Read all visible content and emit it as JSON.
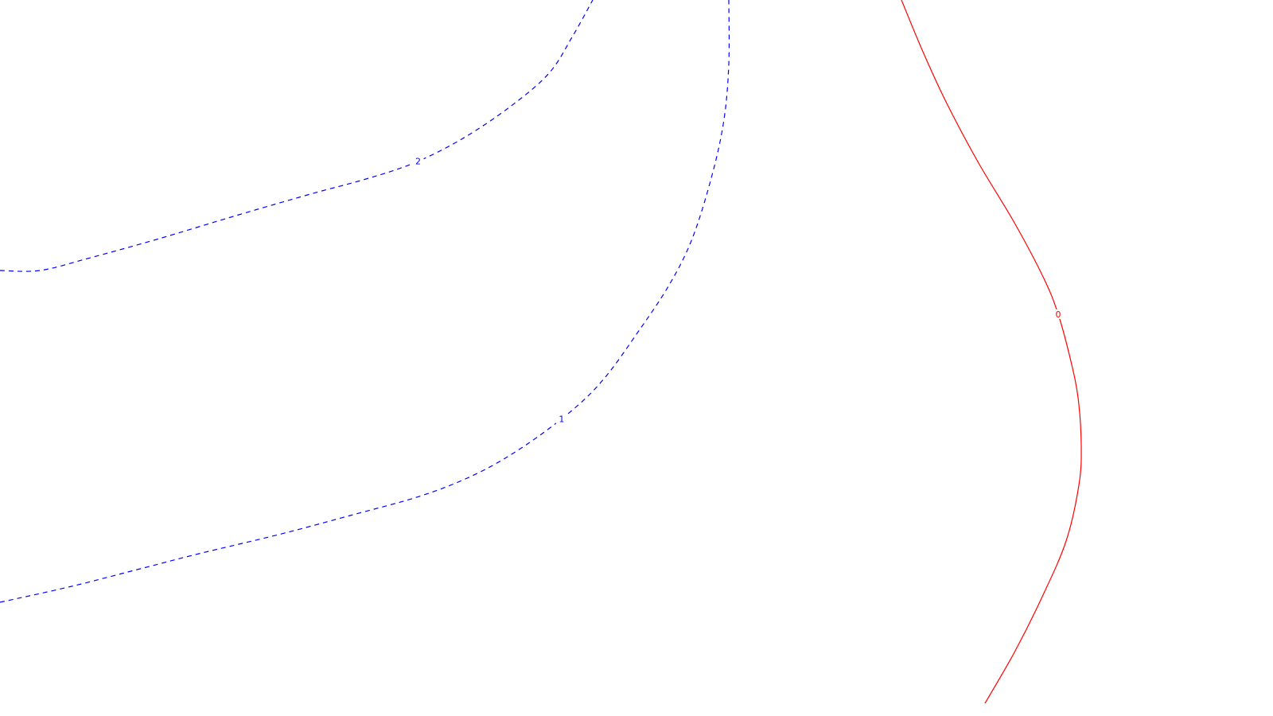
{
  "chart_data": {
    "type": "contour",
    "title": "",
    "xlabel": "",
    "ylabel": "",
    "grid": false,
    "legend": "none",
    "contours": [
      {
        "level": "2",
        "color": "#0000ff",
        "line_style": "dashed",
        "points": [
          [
            0,
            340
          ],
          [
            50,
            340
          ],
          [
            110,
            325
          ],
          [
            200,
            300
          ],
          [
            300,
            270
          ],
          [
            390,
            244
          ],
          [
            460,
            225
          ],
          [
            520,
            205
          ],
          [
            580,
            175
          ],
          [
            640,
            135
          ],
          [
            690,
            92
          ],
          [
            720,
            45
          ],
          [
            745,
            0
          ]
        ]
      },
      {
        "level": "1",
        "color": "#0000ff",
        "line_style": "dashed",
        "points": [
          [
            0,
            757
          ],
          [
            90,
            737
          ],
          [
            180,
            714
          ],
          [
            250,
            696
          ],
          [
            350,
            672
          ],
          [
            440,
            648
          ],
          [
            530,
            623
          ],
          [
            600,
            595
          ],
          [
            660,
            560
          ],
          [
            720,
            515
          ],
          [
            760,
            475
          ],
          [
            800,
            420
          ],
          [
            840,
            360
          ],
          [
            870,
            300
          ],
          [
            895,
            220
          ],
          [
            910,
            150
          ],
          [
            916,
            80
          ],
          [
            916,
            0
          ]
        ]
      },
      {
        "level": "0",
        "color": "#ff0000",
        "line_style": "solid",
        "points": [
          [
            1133,
            0
          ],
          [
            1160,
            65
          ],
          [
            1190,
            130
          ],
          [
            1230,
            205
          ],
          [
            1275,
            280
          ],
          [
            1312,
            350
          ],
          [
            1330,
            395
          ],
          [
            1345,
            450
          ],
          [
            1355,
            500
          ],
          [
            1359,
            560
          ],
          [
            1356,
            610
          ],
          [
            1340,
            680
          ],
          [
            1310,
            750
          ],
          [
            1275,
            820
          ],
          [
            1238,
            884
          ]
        ]
      }
    ]
  }
}
